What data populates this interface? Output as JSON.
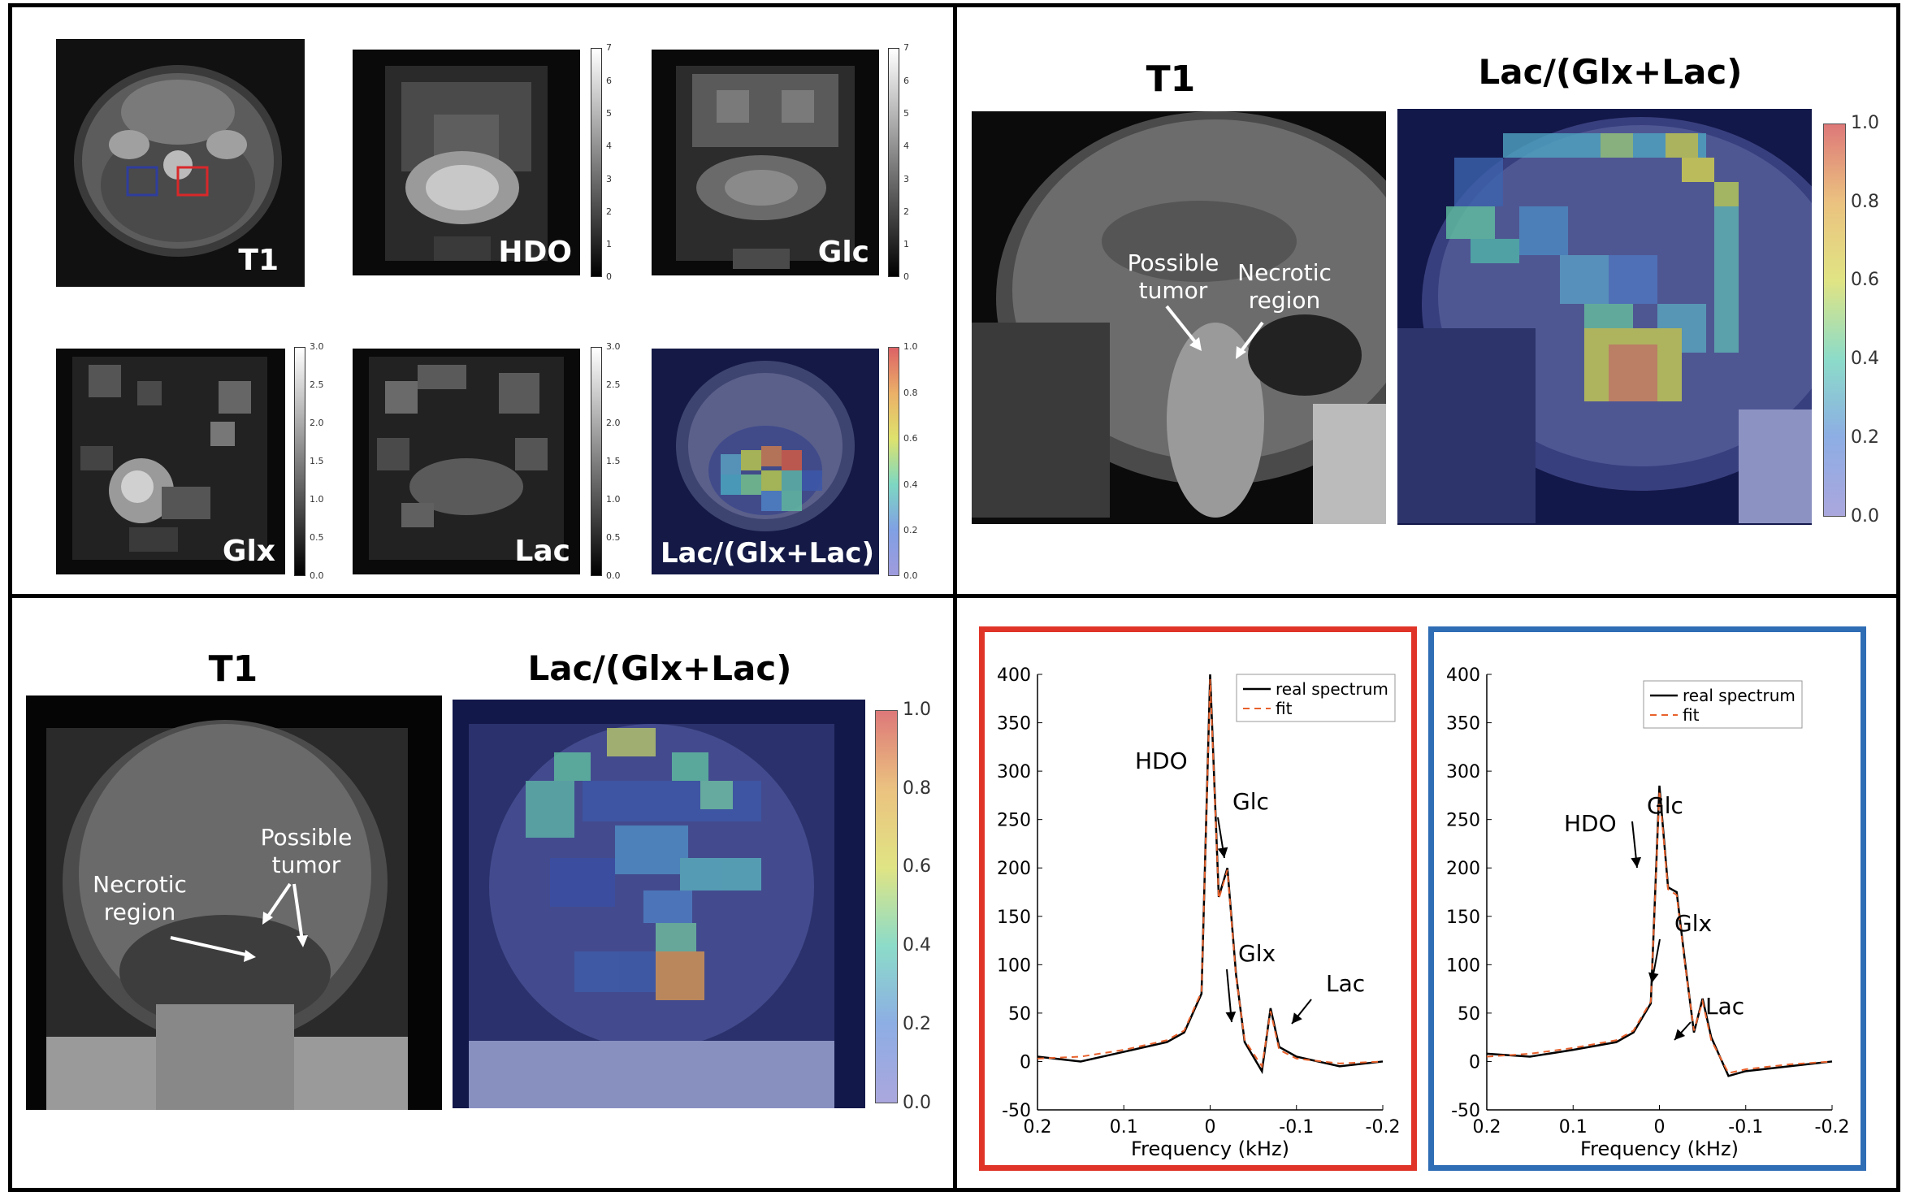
{
  "panel_a": {
    "t1_label": "T1",
    "hdo_label": "HDO",
    "glc_label": "Glc",
    "glx_label": "Glx",
    "lac_label": "Lac",
    "ratio_label": "Lac/(Glx+Lac)",
    "cbar_hdo": [
      "7",
      "6",
      "5",
      "4",
      "3",
      "2",
      "1",
      "0"
    ],
    "cbar_glc": [
      "7",
      "6",
      "5",
      "4",
      "3",
      "2",
      "1",
      "0"
    ],
    "cbar_glx": [
      "3.0",
      "2.5",
      "2.0",
      "1.5",
      "1.0",
      "0.5",
      "0.0"
    ],
    "cbar_lac": [
      "3.0",
      "2.5",
      "2.0",
      "1.5",
      "1.0",
      "0.5",
      "0.0"
    ],
    "cbar_ratio": [
      "1.0",
      "0.8",
      "0.6",
      "0.4",
      "0.2",
      "0.0"
    ]
  },
  "panel_b": {
    "t1_title": "T1",
    "ratio_title": "Lac/(Glx+Lac)",
    "anno_tumor": "Possible tumor",
    "anno_necrotic": "Necrotic region",
    "cbar": [
      "1.0",
      "0.8",
      "0.6",
      "0.4",
      "0.2",
      "0.0"
    ]
  },
  "panel_c": {
    "t1_title": "T1",
    "ratio_title": "Lac/(Glx+Lac)",
    "anno_tumor": "Possible tumor",
    "anno_necrotic": "Necrotic region",
    "cbar": [
      "1.0",
      "0.8",
      "0.6",
      "0.4",
      "0.2",
      "0.0"
    ]
  },
  "colors": {
    "red_box": "#e03428",
    "blue_box": "#2f6db5",
    "fit": "#e8612c"
  },
  "chart_data": [
    {
      "type": "line",
      "xlabel": "Frequency (kHz)",
      "xlim": [
        0.2,
        -0.2
      ],
      "ylim": [
        -50,
        400
      ],
      "xticks": [
        "0.2",
        "0.1",
        "0",
        "-0.1",
        "-0.2"
      ],
      "yticks": [
        "400",
        "350",
        "300",
        "250",
        "200",
        "150",
        "100",
        "50",
        "0",
        "-50"
      ],
      "legend": [
        "real spectrum",
        "fit"
      ],
      "annotations": [
        "HDO",
        "Glc",
        "Glx",
        "Lac"
      ],
      "series": [
        {
          "name": "real spectrum",
          "x": [
            0.2,
            0.15,
            0.1,
            0.05,
            0.03,
            0.01,
            0,
            -0.01,
            -0.02,
            -0.03,
            -0.04,
            -0.06,
            -0.07,
            -0.08,
            -0.1,
            -0.15,
            -0.2
          ],
          "y": [
            5,
            0,
            10,
            20,
            30,
            70,
            400,
            170,
            200,
            90,
            20,
            -10,
            55,
            15,
            5,
            -5,
            0
          ]
        },
        {
          "name": "fit",
          "x": [
            0.2,
            0.15,
            0.1,
            0.05,
            0.03,
            0.01,
            0,
            -0.01,
            -0.02,
            -0.03,
            -0.04,
            -0.06,
            -0.07,
            -0.08,
            -0.1,
            -0.15,
            -0.2
          ],
          "y": [
            3,
            5,
            12,
            22,
            32,
            72,
            395,
            168,
            198,
            88,
            22,
            -5,
            52,
            12,
            3,
            -2,
            0
          ]
        }
      ]
    },
    {
      "type": "line",
      "xlabel": "Frequency (kHz)",
      "xlim": [
        0.2,
        -0.2
      ],
      "ylim": [
        -50,
        400
      ],
      "xticks": [
        "0.2",
        "0.1",
        "0",
        "-0.1",
        "-0.2"
      ],
      "yticks": [
        "400",
        "350",
        "300",
        "250",
        "200",
        "150",
        "100",
        "50",
        "0",
        "-50"
      ],
      "legend": [
        "real spectrum",
        "fit"
      ],
      "annotations": [
        "HDO",
        "Glc",
        "Glx",
        "Lac"
      ],
      "series": [
        {
          "name": "real spectrum",
          "x": [
            0.2,
            0.15,
            0.1,
            0.05,
            0.03,
            0.01,
            0,
            -0.01,
            -0.02,
            -0.03,
            -0.04,
            -0.05,
            -0.06,
            -0.08,
            -0.1,
            -0.15,
            -0.2
          ],
          "y": [
            8,
            5,
            12,
            20,
            30,
            60,
            285,
            180,
            175,
            100,
            30,
            65,
            25,
            -15,
            -10,
            -5,
            0
          ]
        },
        {
          "name": "fit",
          "x": [
            0.2,
            0.15,
            0.1,
            0.05,
            0.03,
            0.01,
            0,
            -0.01,
            -0.02,
            -0.03,
            -0.04,
            -0.05,
            -0.06,
            -0.08,
            -0.1,
            -0.15,
            -0.2
          ],
          "y": [
            5,
            8,
            14,
            22,
            32,
            62,
            280,
            178,
            172,
            98,
            32,
            62,
            22,
            -12,
            -8,
            -3,
            0
          ]
        }
      ]
    }
  ]
}
